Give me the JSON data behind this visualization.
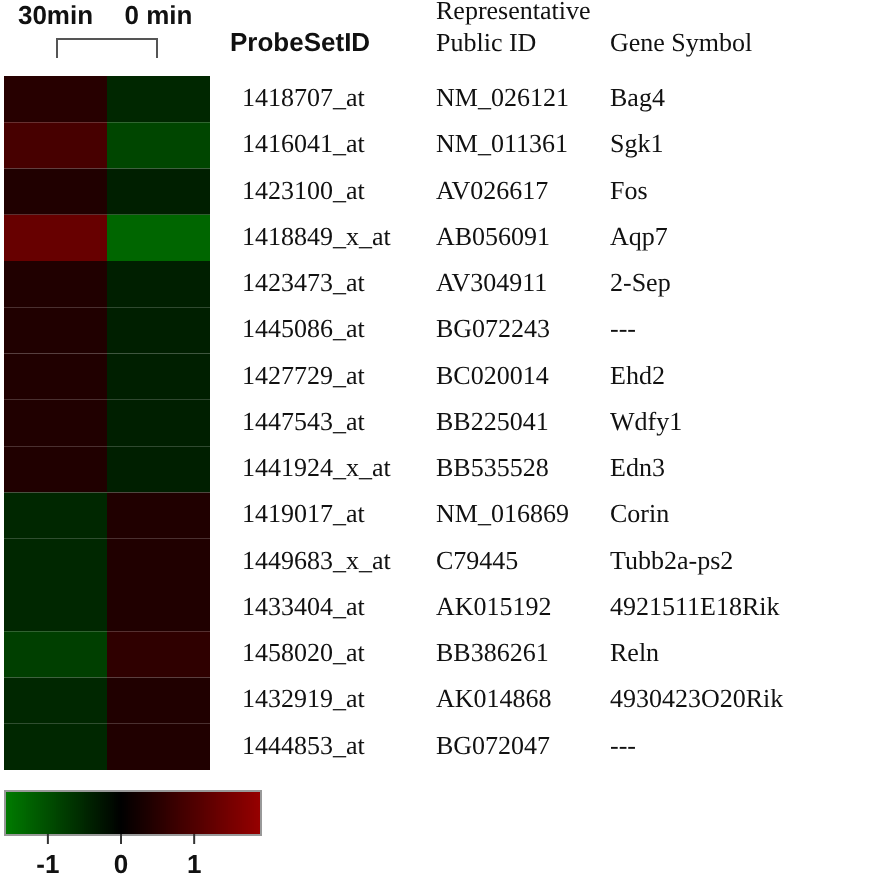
{
  "chart_data": {
    "type": "heatmap",
    "categories": [
      "30min",
      "0 min"
    ],
    "y_categories": [
      "1418707_at",
      "1416041_at",
      "1423100_at",
      "1418849_x_at",
      "1423473_at",
      "1445086_at",
      "1427729_at",
      "1447543_at",
      "1441924_x_at",
      "1419017_at",
      "1449683_x_at",
      "1433404_at",
      "1458020_at",
      "1432919_at",
      "1444853_at"
    ],
    "y2_categories": [
      "NM_026121",
      "NM_011361",
      "AV026617",
      "AB056091",
      "AV304911",
      "BG072243",
      "BC020014",
      "BB225041",
      "BB535528",
      "NM_016869",
      "C79445",
      "AK015192",
      "BB386261",
      "AK014868",
      "BG072047"
    ],
    "cells": [
      [
        0.5,
        -0.5
      ],
      [
        0.9,
        -0.9
      ],
      [
        0.4,
        -0.4
      ],
      [
        1.3,
        -1.3
      ],
      [
        0.4,
        -0.4
      ],
      [
        0.4,
        -0.4
      ],
      [
        0.4,
        -0.4
      ],
      [
        0.4,
        -0.4
      ],
      [
        0.4,
        -0.4
      ],
      [
        -0.5,
        0.4
      ],
      [
        -0.5,
        0.4
      ],
      [
        -0.5,
        0.4
      ],
      [
        -0.8,
        0.6
      ],
      [
        -0.5,
        0.4
      ],
      [
        -0.5,
        0.4
      ]
    ],
    "clim": [
      -1.6,
      1.9
    ],
    "cticks": [
      -1,
      0,
      1
    ],
    "annotations": [
      "ProbeSetID",
      "Representative Public ID",
      "Gene Symbol",
      "Bag4",
      "Sgk1",
      "Fos",
      "Aqp7",
      "2-Sep",
      "---",
      "Ehd2",
      "Wdfy1",
      "Edn3",
      "Corin",
      "Tubb2a-ps2",
      "4921511E18Rik",
      "Reln",
      "4930423O20Rik",
      "---"
    ]
  }
}
